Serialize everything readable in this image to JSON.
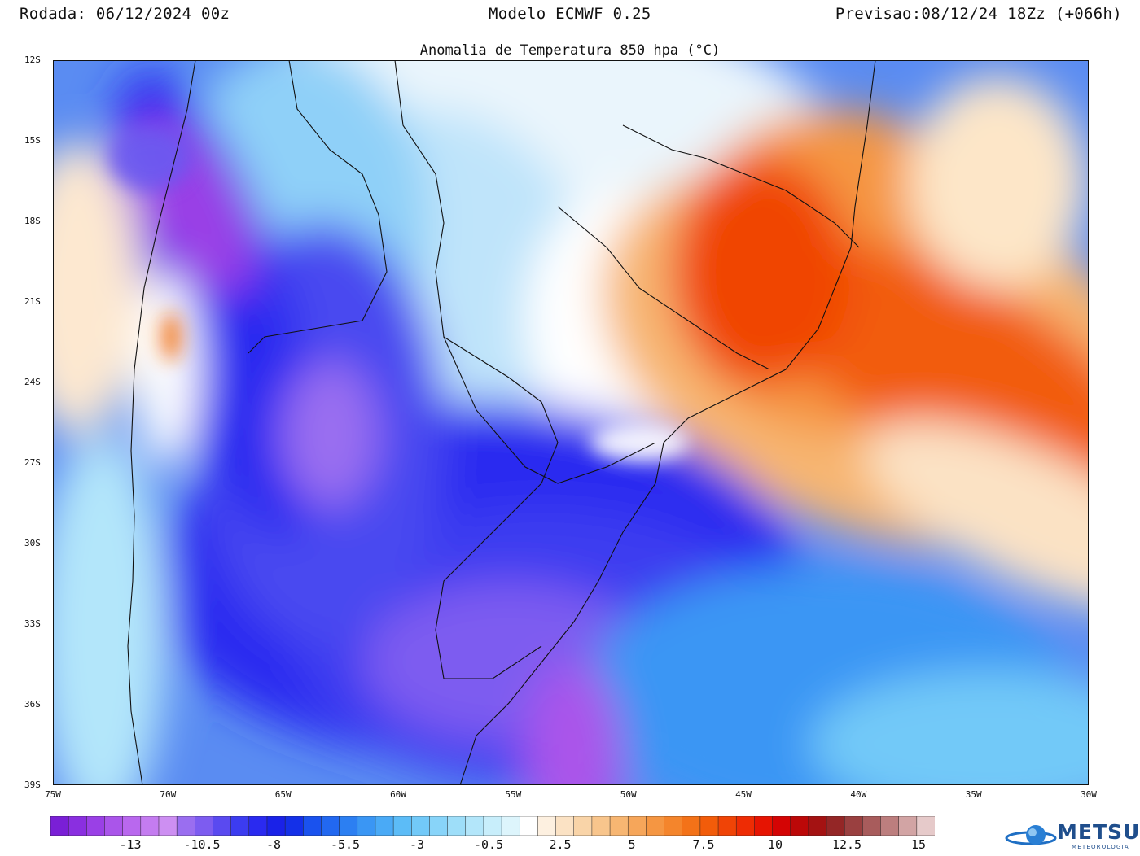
{
  "header": {
    "run": "Rodada: 06/12/2024 00z",
    "model": "Modelo ECMWF 0.25",
    "forecast": "Previsao:08/12/24 18Zz (+066h)"
  },
  "map": {
    "title": "Anomalia de Temperatura 850 hpa (°C)",
    "lat_labels": [
      "12S",
      "15S",
      "18S",
      "21S",
      "24S",
      "27S",
      "30S",
      "33S",
      "36S",
      "39S"
    ],
    "lon_labels": [
      "75W",
      "70W",
      "65W",
      "60W",
      "55W",
      "50W",
      "45W",
      "40W",
      "35W",
      "30W"
    ],
    "extent": {
      "lon": [
        -75,
        -30
      ],
      "lat": [
        -39,
        -12
      ]
    }
  },
  "colorbar": {
    "tick_labels": [
      "-13",
      "-10.5",
      "-8",
      "-5.5",
      "-3",
      "-0.5",
      "2.5",
      "5",
      "7.5",
      "10",
      "12.5",
      "15"
    ],
    "colors": [
      "#7a1fd6",
      "#8a2fe0",
      "#9a40e6",
      "#aa55ea",
      "#b968ee",
      "#c47cf0",
      "#cd8ff2",
      "#9a6ef0",
      "#7d5cf0",
      "#5a4af0",
      "#3c3cf0",
      "#2a2af0",
      "#1a22e8",
      "#1430e8",
      "#1a52ee",
      "#2268f0",
      "#2c7ff2",
      "#3a96f4",
      "#4aaaf6",
      "#5cbcf7",
      "#72c9f8",
      "#88d4f9",
      "#9edef9",
      "#b3e6fa",
      "#c8eefb",
      "#ddf5fc",
      "#ffffff",
      "#fdf0e0",
      "#fbe2c4",
      "#f9d4a8",
      "#f8c58c",
      "#f7b672",
      "#f6a65a",
      "#f59642",
      "#f4852c",
      "#f37218",
      "#f25c0a",
      "#f04406",
      "#ee2c04",
      "#e61402",
      "#d40404",
      "#bc0808",
      "#a41212",
      "#942626",
      "#9a4040",
      "#a85c5c",
      "#bc7e7e",
      "#d2a4a4",
      "#e6caca"
    ]
  },
  "logo": {
    "name": "METSUL",
    "subtitle": "METEOROLOGIA"
  }
}
